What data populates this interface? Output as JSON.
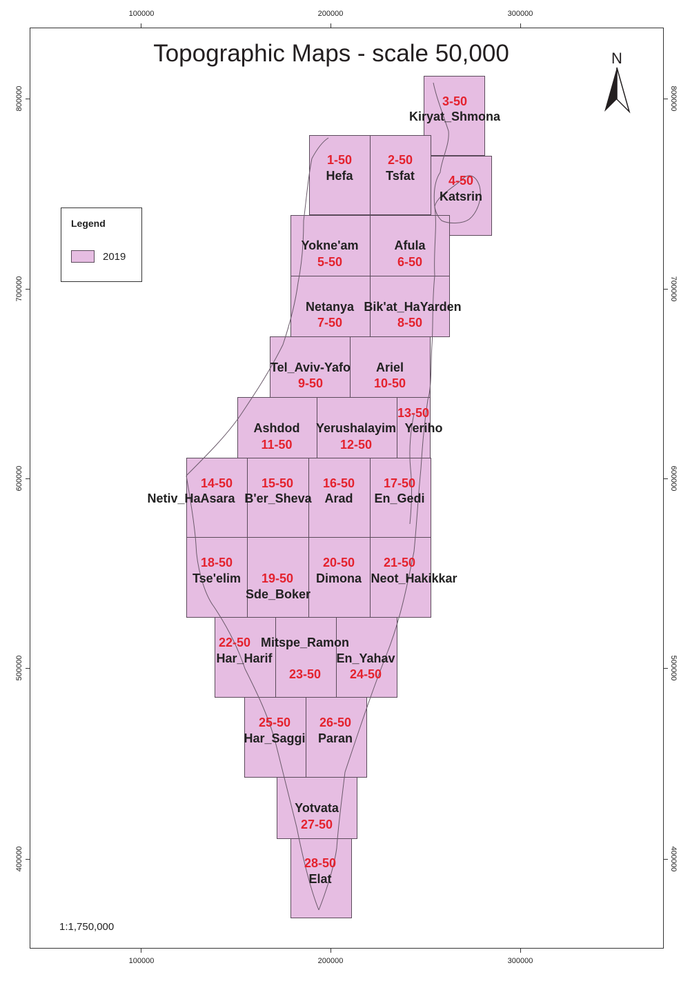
{
  "title": "Topographic Maps - scale 50,000",
  "north_label": "N",
  "legend": {
    "title": "Legend",
    "items": [
      {
        "label": "2019",
        "color": "#e6bde2"
      }
    ]
  },
  "scale_text": "1:1,750,000",
  "axes": {
    "x_ticks": [
      "100000",
      "200000",
      "300000"
    ],
    "y_ticks": [
      "800000",
      "700000",
      "600000",
      "500000",
      "400000"
    ]
  },
  "sheets": [
    {
      "id": "3-50",
      "name": "Kiryat_Shmona"
    },
    {
      "id": "1-50",
      "name": "Hefa"
    },
    {
      "id": "2-50",
      "name": "Tsfat"
    },
    {
      "id": "4-50",
      "name": "Katsrin"
    },
    {
      "id": "5-50",
      "name": "Yokne'am"
    },
    {
      "id": "6-50",
      "name": "Afula"
    },
    {
      "id": "7-50",
      "name": "Netanya"
    },
    {
      "id": "8-50",
      "name": "Bik'at_HaYarden"
    },
    {
      "id": "9-50",
      "name": "Tel_Aviv-Yafo"
    },
    {
      "id": "10-50",
      "name": "Ariel"
    },
    {
      "id": "11-50",
      "name": "Ashdod"
    },
    {
      "id": "12-50",
      "name": "Yerushalayim"
    },
    {
      "id": "13-50",
      "name": "Yeriho"
    },
    {
      "id": "14-50",
      "name": "Netiv_HaAsara"
    },
    {
      "id": "15-50",
      "name": "B'er_Sheva"
    },
    {
      "id": "16-50",
      "name": "Arad"
    },
    {
      "id": "17-50",
      "name": "En_Gedi"
    },
    {
      "id": "18-50",
      "name": "Tse'elim"
    },
    {
      "id": "19-50",
      "name": "Sde_Boker"
    },
    {
      "id": "20-50",
      "name": "Dimona"
    },
    {
      "id": "21-50",
      "name": "Neot_Hakikkar"
    },
    {
      "id": "22-50",
      "name": "Har_Harif"
    },
    {
      "id": "23-50",
      "name": "Mitspe_Ramon"
    },
    {
      "id": "24-50",
      "name": "En_Yahav"
    },
    {
      "id": "25-50",
      "name": "Har_Saggi"
    },
    {
      "id": "26-50",
      "name": "Paran"
    },
    {
      "id": "27-50",
      "name": "Yotvata"
    },
    {
      "id": "28-50",
      "name": "Elat"
    }
  ]
}
